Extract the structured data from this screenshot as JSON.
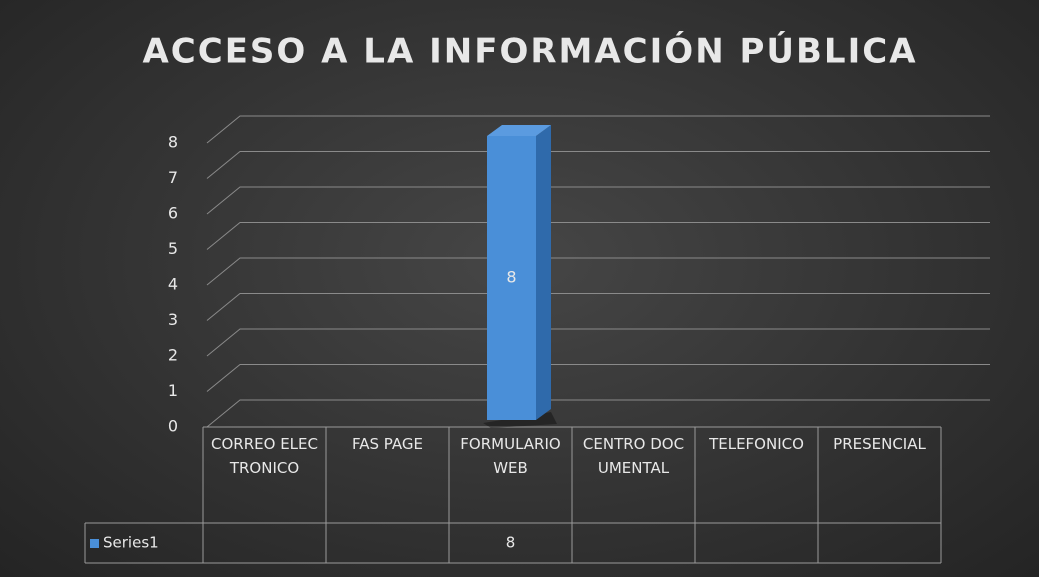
{
  "chart_data": {
    "type": "bar",
    "title": "ACCESO A LA INFORMACIÓN PÚBLICA",
    "categories": [
      "CORREO ELECTRONICO",
      "FAS PAGE",
      "FORMULARIO WEB",
      "CENTRO DOCUMENTAL",
      "TELEFONICO",
      "PRESENCIAL"
    ],
    "series": [
      {
        "name": "Series1",
        "color": "#4a8fd8",
        "values": [
          null,
          null,
          8,
          null,
          null,
          null
        ]
      }
    ],
    "ylim": [
      0,
      8
    ],
    "yticks": [
      0,
      1,
      2,
      3,
      4,
      5,
      6,
      7,
      8
    ],
    "grid": true,
    "data_table": true
  }
}
